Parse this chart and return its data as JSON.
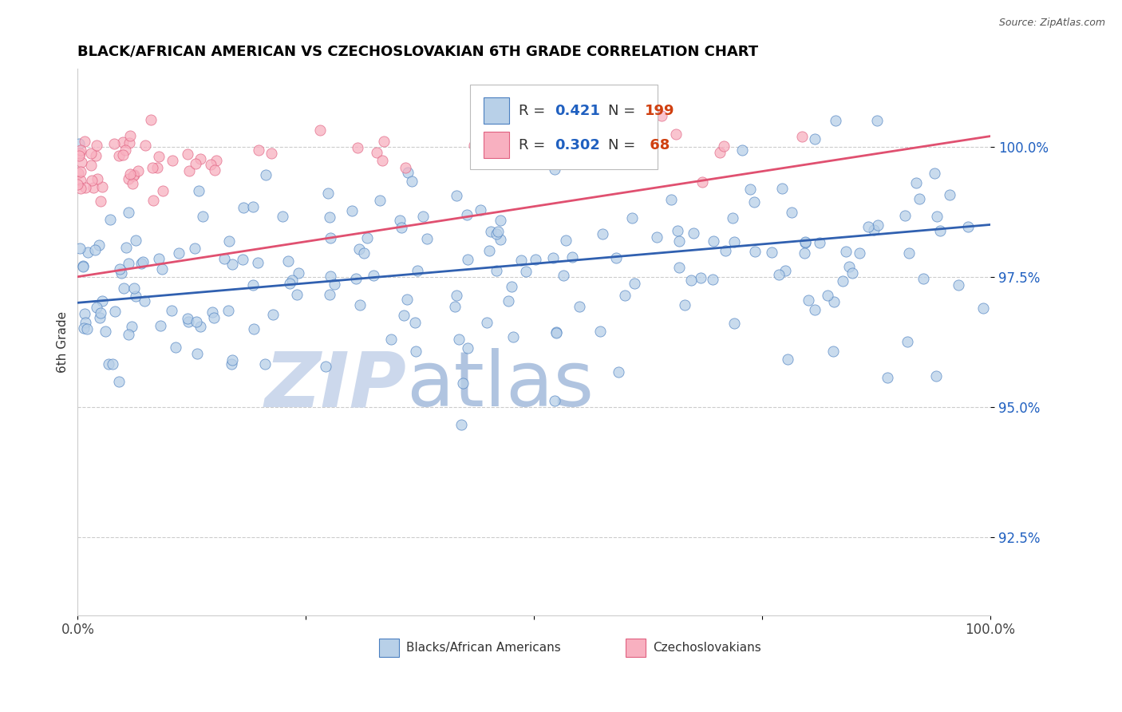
{
  "title": "BLACK/AFRICAN AMERICAN VS CZECHOSLOVAKIAN 6TH GRADE CORRELATION CHART",
  "source": "Source: ZipAtlas.com",
  "ylabel": "6th Grade",
  "xlim": [
    0.0,
    100.0
  ],
  "ylim": [
    91.0,
    101.5
  ],
  "yticks": [
    92.5,
    95.0,
    97.5,
    100.0
  ],
  "ytick_labels": [
    "92.5%",
    "95.0%",
    "97.5%",
    "100.0%"
  ],
  "blue_R": 0.421,
  "blue_N": 199,
  "pink_R": 0.302,
  "pink_N": 68,
  "blue_fill": "#b8d0e8",
  "blue_edge": "#4a7fc0",
  "pink_fill": "#f8b0c0",
  "pink_edge": "#e06080",
  "blue_line": "#3060b0",
  "pink_line": "#e05070",
  "legend_R_color": "#2060c0",
  "legend_N_color": "#d04010",
  "watermark_zip_color": "#ccd8ec",
  "watermark_atlas_color": "#b0c4e0"
}
